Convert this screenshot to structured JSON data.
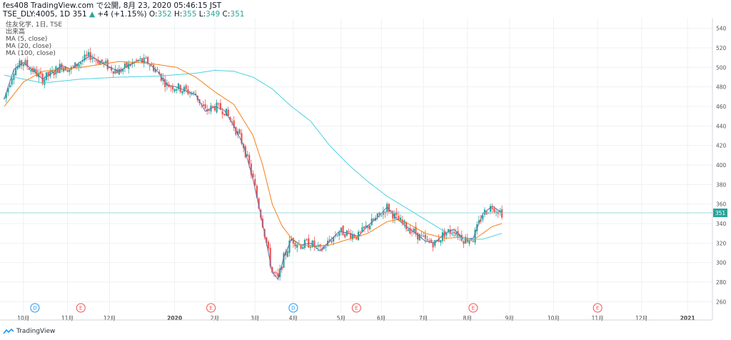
{
  "header": {
    "line1": "fes408 TradingView.com で公開, 8月 23, 2020 05:46:15 JST",
    "symbol": "TSE_DLY:4005, 1D",
    "price": "351",
    "change_arrow": "▲",
    "change": "+4 (+1.15%)",
    "o_label": "O:",
    "o": "352",
    "h_label": "H:",
    "h": "355",
    "l_label": "L:",
    "l": "349",
    "c_label": "C:",
    "c": "351"
  },
  "legend": {
    "title": "住友化学, 1日, TSE",
    "volume": "出来高",
    "ma5": "MA (5, close)",
    "ma20": "MA (20, close)",
    "ma100": "MA (100, close)"
  },
  "footer": {
    "brand": "TradingView"
  },
  "colors": {
    "up": "#26a69a",
    "down": "#ef5350",
    "ma5": "#5b6fb0",
    "ma20": "#f57f17",
    "ma100": "#4dd0e1",
    "grid": "#eef0f3",
    "price_line": "#7ecfd4",
    "price_badge": "#26a69a",
    "event_dividend": "#2196f3",
    "event_earnings": "#ef5350"
  },
  "chart_data": {
    "type": "line",
    "title": "住友化学, 1日, TSE",
    "ylim": [
      250,
      550
    ],
    "y_ticks": [
      260,
      280,
      300,
      320,
      340,
      360,
      380,
      400,
      420,
      440,
      460,
      480,
      500,
      520,
      540
    ],
    "x_ticks": [
      {
        "label": "10月",
        "x": 10
      },
      {
        "label": "11月",
        "x": 33
      },
      {
        "label": "12月",
        "x": 55
      },
      {
        "label": "2020",
        "x": 89
      },
      {
        "label": "2月",
        "x": 110
      },
      {
        "label": "3月",
        "x": 131
      },
      {
        "label": "4月",
        "x": 151
      },
      {
        "label": "5月",
        "x": 176
      },
      {
        "label": "6月",
        "x": 197
      },
      {
        "label": "7月",
        "x": 219
      },
      {
        "label": "8月",
        "x": 242
      },
      {
        "label": "9月",
        "x": 264
      },
      {
        "label": "10月",
        "x": 287
      },
      {
        "label": "11月",
        "x": 310
      },
      {
        "label": "12月",
        "x": 333
      },
      {
        "label": "2021",
        "x": 357
      }
    ],
    "last_price": 351,
    "events": [
      {
        "type": "D",
        "x": 16
      },
      {
        "type": "E",
        "x": 40
      },
      {
        "type": "E",
        "x": 108
      },
      {
        "type": "D",
        "x": 151
      },
      {
        "type": "E",
        "x": 184
      },
      {
        "type": "E",
        "x": 245
      },
      {
        "type": "E",
        "x": 310
      }
    ],
    "series": [
      {
        "name": "MA (5, close)",
        "key": "ma5",
        "x": [
          0,
          5,
          10,
          15,
          20,
          25,
          30,
          35,
          40,
          45,
          50,
          55,
          60,
          65,
          70,
          75,
          80,
          85,
          90,
          95,
          100,
          105,
          110,
          115,
          120,
          125,
          130,
          135,
          140,
          143,
          146,
          150,
          155,
          160,
          165,
          170,
          175,
          180,
          185,
          190,
          195,
          200,
          205,
          210,
          215,
          220,
          225,
          230,
          235,
          240,
          245,
          250,
          255,
          260
        ],
        "values": [
          468,
          498,
          505,
          497,
          488,
          494,
          502,
          498,
          506,
          512,
          506,
          500,
          496,
          502,
          507,
          505,
          496,
          482,
          480,
          476,
          472,
          455,
          460,
          456,
          440,
          420,
          385,
          340,
          290,
          283,
          305,
          324,
          318,
          320,
          312,
          322,
          332,
          330,
          327,
          338,
          346,
          357,
          345,
          337,
          330,
          322,
          320,
          330,
          334,
          324,
          325,
          350,
          358,
          351
        ]
      },
      {
        "name": "MA (20, close)",
        "key": "ma20",
        "x": [
          0,
          10,
          20,
          30,
          40,
          50,
          60,
          70,
          80,
          90,
          100,
          110,
          120,
          130,
          135,
          140,
          145,
          150,
          155,
          160,
          170,
          180,
          190,
          195,
          200,
          205,
          210,
          220,
          230,
          240,
          245,
          250,
          255,
          260
        ],
        "values": [
          460,
          485,
          496,
          498,
          500,
          503,
          506,
          505,
          503,
          500,
          490,
          475,
          462,
          430,
          400,
          360,
          338,
          325,
          318,
          317,
          318,
          324,
          330,
          336,
          342,
          344,
          341,
          330,
          325,
          326,
          323,
          330,
          337,
          340
        ]
      },
      {
        "name": "MA (100, close)",
        "key": "ma100",
        "x": [
          0,
          20,
          40,
          60,
          80,
          100,
          110,
          120,
          130,
          140,
          150,
          160,
          170,
          180,
          190,
          200,
          210,
          220,
          230,
          240,
          250,
          260
        ],
        "values": [
          492,
          484,
          488,
          490,
          491,
          494,
          497,
          496,
          490,
          478,
          460,
          445,
          420,
          400,
          383,
          368,
          356,
          344,
          332,
          324,
          324,
          330
        ]
      }
    ],
    "candles_note": "daily OHLC candles approximated around MA(5)"
  }
}
